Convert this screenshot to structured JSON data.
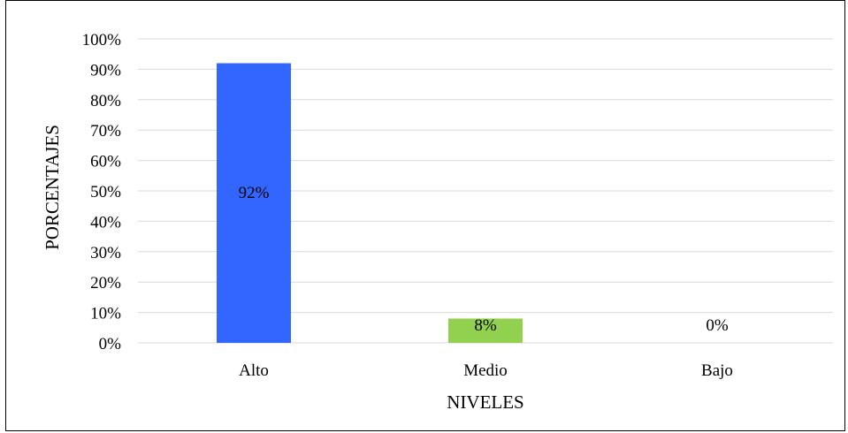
{
  "chart_data": {
    "type": "bar",
    "categories": [
      "Alto",
      "Medio",
      "Bajo"
    ],
    "values": [
      92,
      8,
      0
    ],
    "data_labels": [
      "92%",
      "8%",
      "0%"
    ],
    "title": "",
    "xlabel": "NIVELES",
    "ylabel": "PORCENTAJES",
    "ylim": [
      0,
      100
    ],
    "yticks": [
      "0%",
      "10%",
      "20%",
      "30%",
      "40%",
      "50%",
      "60%",
      "70%",
      "80%",
      "90%",
      "100%"
    ],
    "grid": true,
    "legend": "none",
    "colors": [
      "#3366ff",
      "#92d050",
      "#ffffff"
    ]
  }
}
